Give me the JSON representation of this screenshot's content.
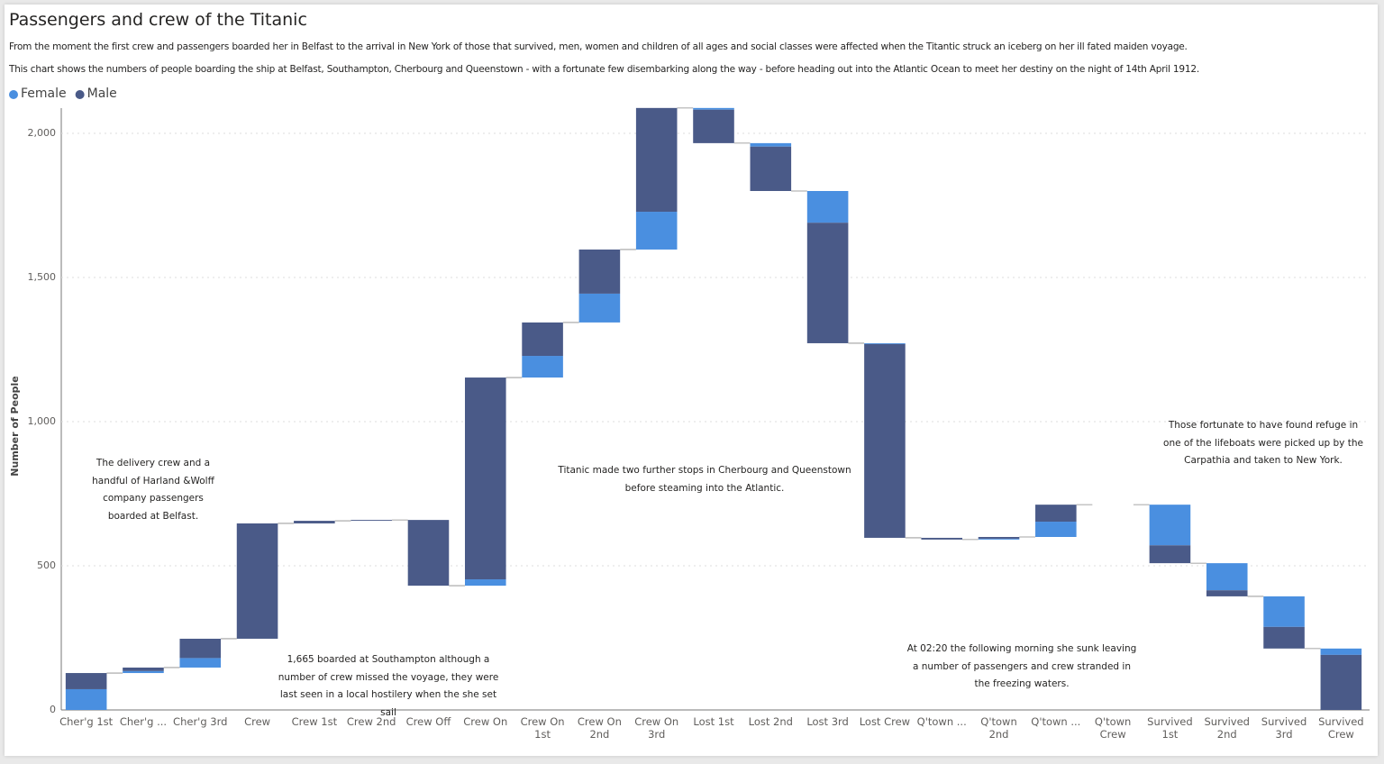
{
  "chart_data": {
    "type": "waterfall",
    "title": "Passengers and crew of the Titanic",
    "subtitles": [
      "From the moment the first crew and passengers boarded her in Belfast to the arrival in New York of those that survived, men, women and children of all ages and social classes were affected when the Titantic struck an iceberg on her ill fated maiden voyage.",
      "This chart shows the numbers of people boarding the ship at Belfast, Southampton, Cherbourg and Queenstown - with a fortunate few disembarking along the way - before heading out into the Atlantic Ocean to meet her destiny on the night of 14th April 1912."
    ],
    "y_label": "Number of People",
    "categories": [
      "Cher'g 1st",
      "Cher'g ...",
      "Cher'g 3rd",
      "Crew",
      "Crew 1st",
      "Crew 2nd",
      "Crew Off",
      "Crew On",
      "Crew On 1st",
      "Crew On 2nd",
      "Crew On 3rd",
      "Lost 1st",
      "Lost 2nd",
      "Lost 3rd",
      "Lost Crew",
      "Q'town ...",
      "Q'town 2nd",
      "Q'town ...",
      "Q'town Crew",
      "Survived 1st",
      "Survived 2nd",
      "Survived 3rd",
      "Survived Crew"
    ],
    "series": [
      {
        "name": "Female",
        "color": "#4a8fe0",
        "values": [
          72,
          7,
          33,
          0,
          0,
          0,
          0,
          22,
          75,
          100,
          131,
          -6,
          -12,
          -110,
          -3,
          0,
          3,
          53,
          0,
          -141,
          -94,
          -106,
          -22
        ]
      },
      {
        "name": "Male",
        "color": "#4a5a88",
        "values": [
          56,
          12,
          67,
          400,
          9,
          3,
          -228,
          700,
          116,
          153,
          360,
          -116,
          -154,
          -418,
          -672,
          -6,
          6,
          59,
          0,
          -62,
          -21,
          -75,
          -191
        ]
      }
    ],
    "ylim": [
      0,
      2100
    ],
    "yticks": [
      0,
      500,
      {
        "value": 1000,
        "label": "1,000"
      },
      {
        "value": 1500,
        "label": "1,500"
      },
      {
        "value": 2000,
        "label": "2,000"
      }
    ],
    "grid": true,
    "annotations": [
      "The delivery crew and a handful of Harland &Wolff company passengers boarded at Belfast.",
      "1,665 boarded at Southampton although a number of crew missed the voyage, they were last seen in a local hostilery when the she set sail",
      "Titanic made two further stops in Cherbourg and Queenstown before steaming into the Atlantic.",
      "At 02:20 the following morning she sunk leaving a number of passengers and crew stranded in the freezing waters.",
      "Those fortunate to have found refuge in one of the lifeboats were picked up by the Carpathia and taken to New York."
    ]
  }
}
